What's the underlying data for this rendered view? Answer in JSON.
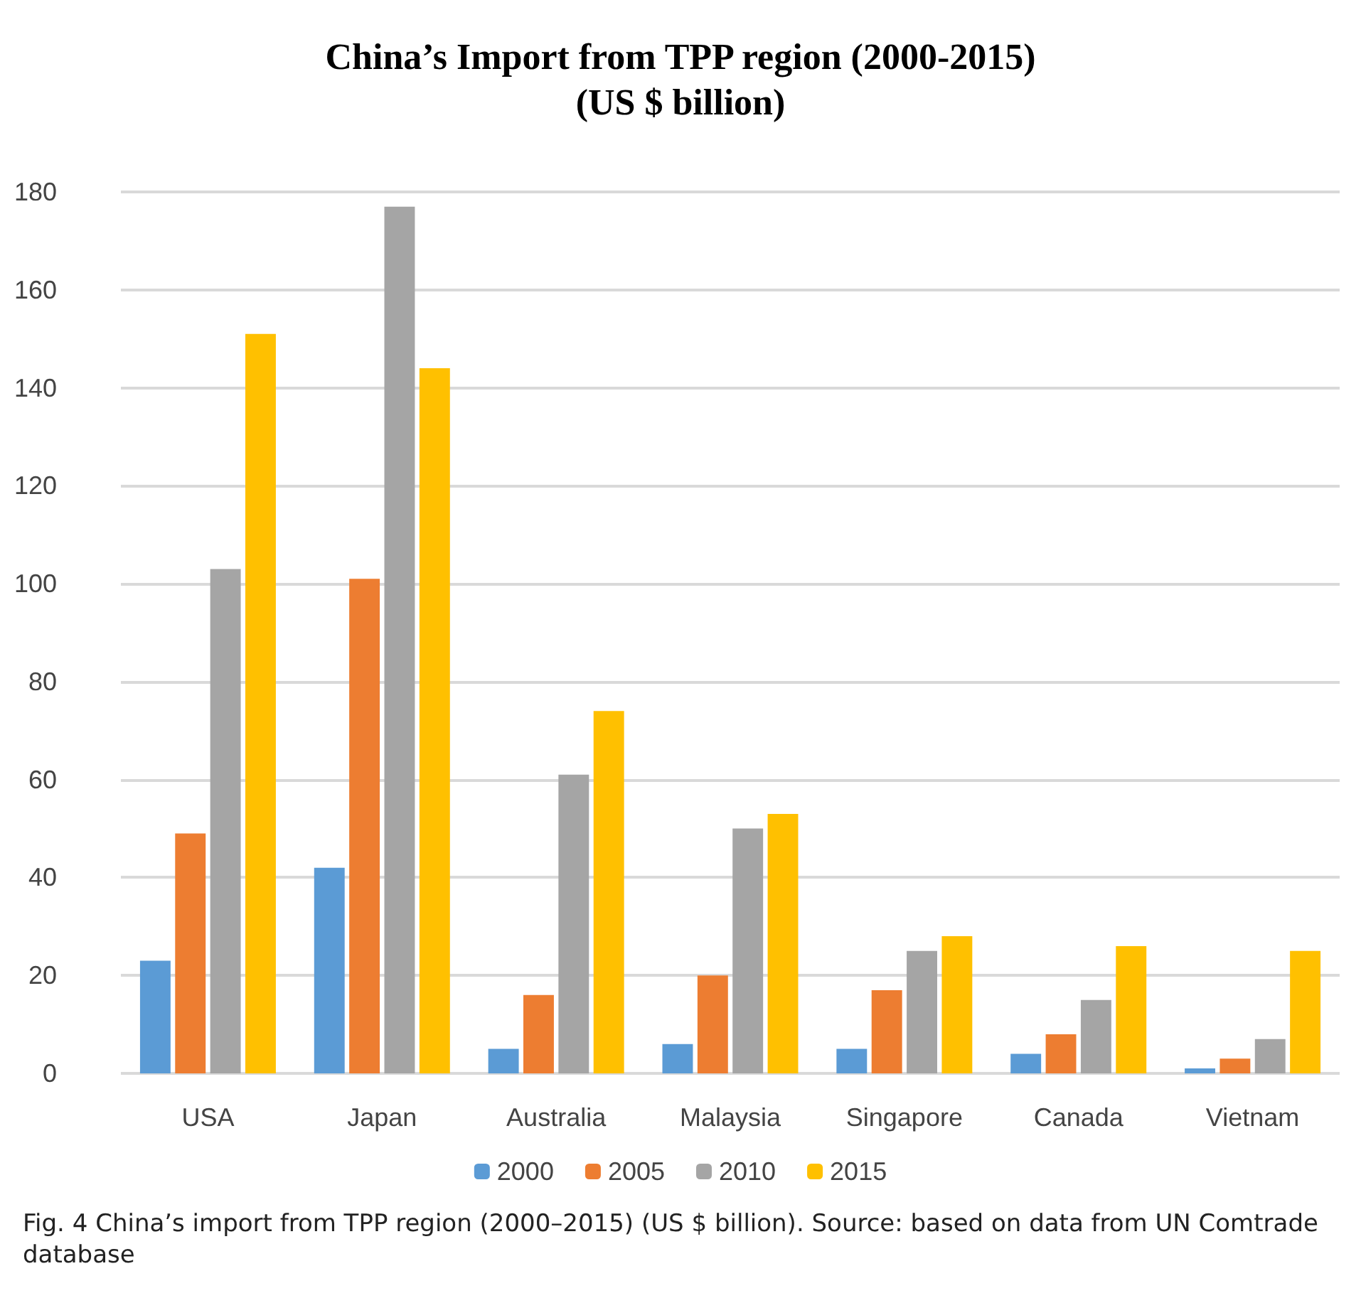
{
  "chart_data": {
    "type": "bar",
    "title": "China’s Import from TPP region (2000-2015)",
    "subtitle": "(US $ billion)",
    "categories": [
      "USA",
      "Japan",
      "Australia",
      "Malaysia",
      "Singapore",
      "Canada",
      "Vietnam"
    ],
    "series": [
      {
        "name": "2000",
        "color": "#5b9bd5",
        "values": [
          23,
          42,
          5,
          6,
          5,
          4,
          1
        ]
      },
      {
        "name": "2005",
        "color": "#ed7d31",
        "values": [
          49,
          101,
          16,
          20,
          17,
          8,
          3
        ]
      },
      {
        "name": "2010",
        "color": "#a5a5a5",
        "values": [
          103,
          177,
          61,
          50,
          25,
          15,
          7
        ]
      },
      {
        "name": "2015",
        "color": "#ffc000",
        "values": [
          151,
          144,
          74,
          53,
          28,
          26,
          25
        ]
      }
    ],
    "ylim": [
      0,
      180
    ],
    "yticks": [
      0,
      20,
      40,
      60,
      80,
      100,
      120,
      140,
      160,
      180
    ],
    "grid": "y",
    "legend": "bottom",
    "annotations": [
      "Fig. 4  China’s import from TPP region (2000–2015) (US $ billion). Source: based on data from UN Comtrade database"
    ]
  }
}
